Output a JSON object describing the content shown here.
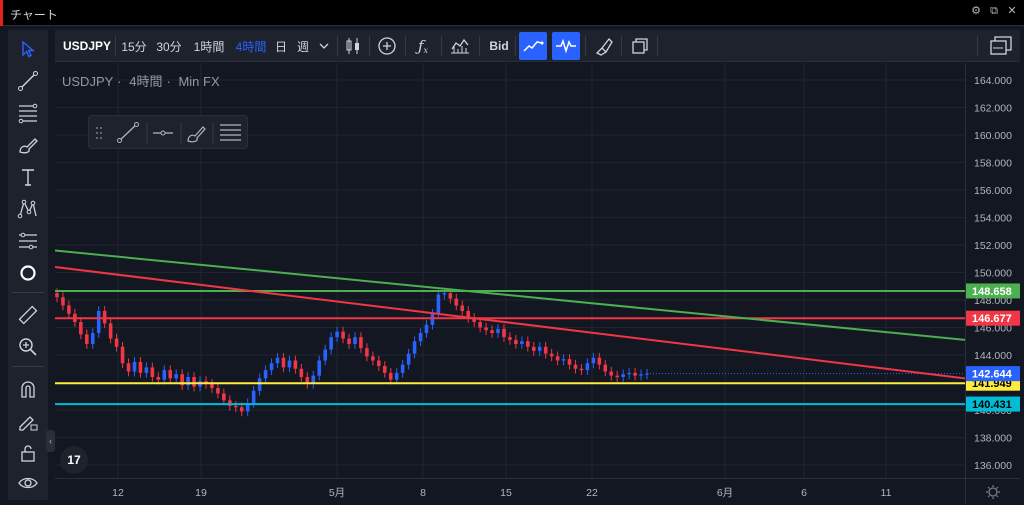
{
  "window": {
    "title": "チャート"
  },
  "toolbar": {
    "symbol": "USDJPY",
    "intervals": [
      "15分",
      "30分",
      "1時間",
      "4時間",
      "日",
      "週"
    ],
    "active_interval": "4時間",
    "bid_label": "Bid"
  },
  "legend": {
    "symbol": "USDJPY",
    "interval": "4時間",
    "source": "Min FX"
  },
  "logo": {
    "text": "17"
  },
  "colors": {
    "green": "#4caf50",
    "red": "#f23645",
    "yellow": "#ffeb3b",
    "cyan": "#00bcd4",
    "price_blue": "#2962ff",
    "candle_up": "#2962ff",
    "candle_down": "#f23645",
    "background": "#131722",
    "active_interval": "#2962ff"
  },
  "icons": {
    "left_toolbar": [
      "cursor-icon",
      "trend-line-icon",
      "fib-icon",
      "brush-icon",
      "text-icon",
      "pattern-icon",
      "prediction-icon",
      "circle-icon",
      "ruler-icon",
      "zoom-in-icon",
      "magnet-icon",
      "pencil-lock-icon",
      "unlock-icon",
      "eye-icon"
    ],
    "top_toolbar": [
      "candles-icon",
      "add-compare-icon",
      "indicators-icon",
      "chart-type-icon",
      "line-tool-icon",
      "wave-icon",
      "brush-icon",
      "layout-icon",
      "layouts-icon"
    ],
    "drawing_panel": [
      "drag-handle-icon",
      "trend-line-icon",
      "horizontal-ray-icon",
      "brush-icon",
      "fib-icon"
    ]
  },
  "chart_data": {
    "type": "candlestick",
    "symbol": "USDJPY",
    "ylim": [
      135,
      165
    ],
    "y_ticks": [
      "164.000",
      "162.000",
      "160.000",
      "158.000",
      "156.000",
      "154.000",
      "152.000",
      "150.000",
      "148.000",
      "146.000",
      "144.000",
      "142.000",
      "140.000",
      "138.000",
      "136.000"
    ],
    "x_ticks": [
      "12",
      "19",
      "5月",
      "8",
      "15",
      "22",
      "6月",
      "6",
      "11"
    ],
    "horizontal_levels": [
      {
        "label": "148.658",
        "value": 148.658,
        "color": "#4caf50"
      },
      {
        "label": "146.677",
        "value": 146.677,
        "color": "#f23645"
      },
      {
        "label": "141.949",
        "value": 141.949,
        "color": "#ffeb3b"
      },
      {
        "label": "140.431",
        "value": 140.431,
        "color": "#00bcd4"
      }
    ],
    "current_price": {
      "label": "142.644",
      "value": 142.644,
      "color": "#2962ff"
    },
    "closes": [
      148.2,
      147.6,
      147.0,
      146.4,
      145.5,
      144.8,
      145.6,
      147.2,
      146.3,
      145.2,
      144.6,
      143.4,
      142.8,
      143.5,
      142.7,
      143.1,
      142.4,
      142.2,
      142.9,
      142.3,
      142.6,
      141.8,
      142.4,
      141.7,
      142.1,
      141.9,
      141.6,
      141.2,
      140.7,
      140.3,
      140.2,
      139.9,
      140.5,
      141.4,
      142.3,
      142.9,
      143.4,
      143.8,
      143.1,
      143.6,
      143.0,
      142.4,
      141.9,
      142.5,
      143.6,
      144.4,
      145.3,
      145.7,
      145.2,
      144.8,
      145.3,
      144.5,
      143.9,
      143.6,
      143.2,
      142.7,
      142.2,
      142.7,
      143.3,
      144.1,
      145.0,
      145.6,
      146.2,
      147.0,
      148.4,
      148.5,
      148.1,
      147.6,
      147.2,
      146.7,
      146.4,
      146.0,
      145.8,
      145.6,
      145.9,
      145.3,
      145.1,
      144.8,
      145.0,
      144.6,
      144.3,
      144.6,
      144.1,
      143.9,
      143.6,
      143.7,
      143.3,
      143.0,
      142.9,
      143.4,
      143.8,
      143.3,
      142.8,
      142.5,
      142.4,
      142.6,
      142.7,
      142.5,
      142.6,
      142.644
    ],
    "trend_lines": [
      {
        "color": "#4caf50",
        "from": 151.6,
        "to": 145.1
      },
      {
        "color": "#f23645",
        "from": 150.4,
        "to": 142.3
      }
    ]
  }
}
